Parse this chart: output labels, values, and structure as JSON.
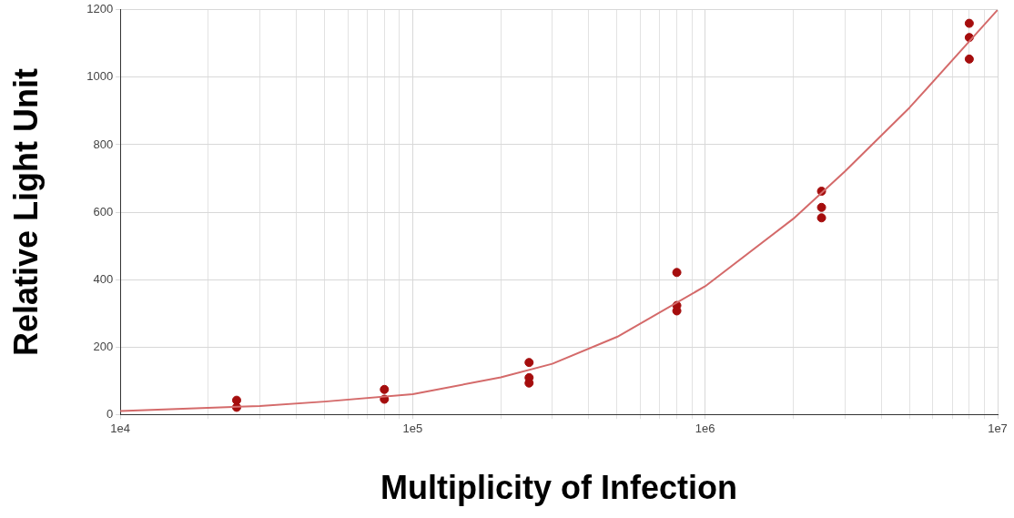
{
  "chart_data": {
    "type": "scatter",
    "xlabel": "Multiplicity of Infection",
    "ylabel": "Relative Light Unit",
    "log": "x",
    "xlim": [
      10000,
      10000000
    ],
    "ylim": [
      0,
      1200
    ],
    "xticks": [
      {
        "value": 10000,
        "label": "1e4"
      },
      {
        "value": 20000,
        "label": null
      },
      {
        "value": 30000,
        "label": null
      },
      {
        "value": 40000,
        "label": null
      },
      {
        "value": 50000,
        "label": null
      },
      {
        "value": 60000,
        "label": null
      },
      {
        "value": 70000,
        "label": null
      },
      {
        "value": 80000,
        "label": null
      },
      {
        "value": 90000,
        "label": null
      },
      {
        "value": 100000,
        "label": "1e5"
      },
      {
        "value": 200000,
        "label": null
      },
      {
        "value": 300000,
        "label": null
      },
      {
        "value": 400000,
        "label": null
      },
      {
        "value": 500000,
        "label": null
      },
      {
        "value": 600000,
        "label": null
      },
      {
        "value": 700000,
        "label": null
      },
      {
        "value": 800000,
        "label": null
      },
      {
        "value": 900000,
        "label": null
      },
      {
        "value": 1000000,
        "label": "1e6"
      },
      {
        "value": 2000000,
        "label": null
      },
      {
        "value": 3000000,
        "label": null
      },
      {
        "value": 4000000,
        "label": null
      },
      {
        "value": 5000000,
        "label": null
      },
      {
        "value": 6000000,
        "label": null
      },
      {
        "value": 7000000,
        "label": null
      },
      {
        "value": 8000000,
        "label": null
      },
      {
        "value": 9000000,
        "label": null
      },
      {
        "value": 10000000,
        "label": "1e7"
      }
    ],
    "yticks": [
      0,
      200,
      400,
      600,
      800,
      1000,
      1200
    ],
    "grid": true,
    "marker": "circle",
    "series": [
      {
        "type": "line",
        "color": "#d46a6a",
        "marker": "none",
        "x": [
          10000,
          30000,
          50000,
          100000,
          200000,
          300000,
          500000,
          1000000,
          2000000,
          3000000,
          5000000,
          10000000
        ],
        "values": [
          10,
          25,
          38,
          60,
          110,
          150,
          230,
          380,
          580,
          720,
          910,
          1200
        ]
      },
      {
        "color": "#a50d0d",
        "x": [
          25000,
          25000,
          80000,
          80000,
          250000,
          250000,
          250000,
          800000,
          800000,
          800000,
          2500000,
          2500000,
          2500000,
          8000000,
          8000000,
          8000000
        ],
        "values": [
          42,
          21,
          74,
          45,
          154,
          109,
          93,
          421,
          323,
          307,
          662,
          614,
          583,
          1160,
          1118,
          1054
        ]
      }
    ]
  }
}
